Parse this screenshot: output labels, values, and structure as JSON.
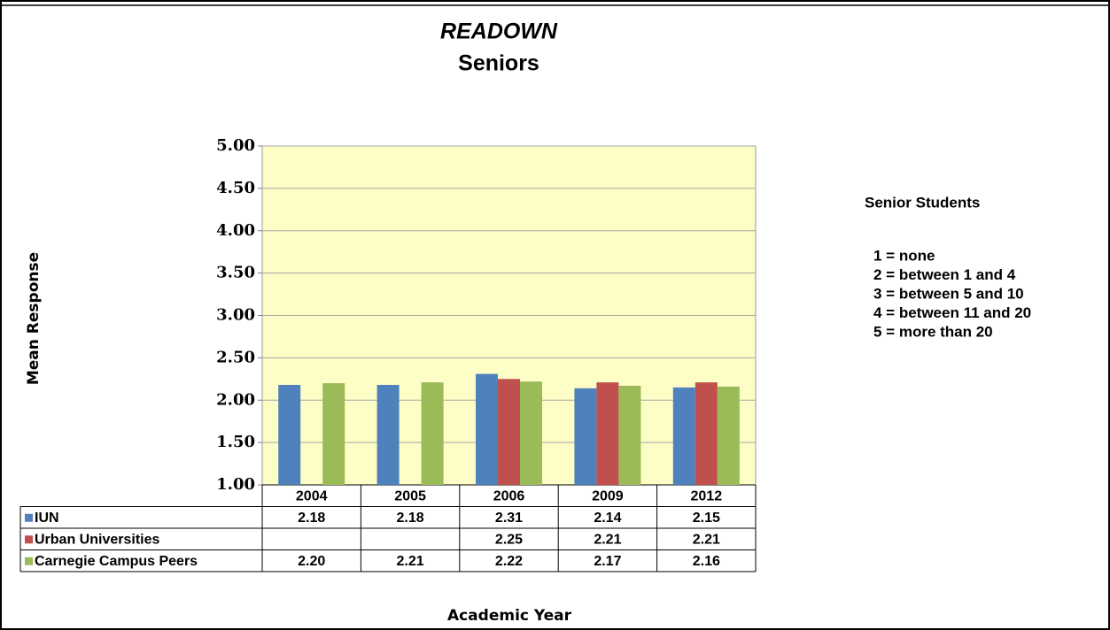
{
  "chart_data": {
    "type": "bar",
    "title": "READOWN",
    "subtitle": "Seniors",
    "y_label": "Mean Response",
    "x_label": "Academic Year",
    "categories": [
      "2004",
      "2005",
      "2006",
      "2009",
      "2012"
    ],
    "series": [
      {
        "name": "IUN",
        "color": "#4f81bd",
        "values": [
          2.18,
          2.18,
          2.31,
          2.14,
          2.15
        ],
        "value_labels": [
          "2.18",
          "2.18",
          "2.31",
          "2.14",
          "2.15"
        ]
      },
      {
        "name": "Urban Universities",
        "color": "#c0504d",
        "values": [
          null,
          null,
          2.25,
          2.21,
          2.21
        ],
        "value_labels": [
          null,
          null,
          "2.25",
          "2.21",
          "2.21"
        ]
      },
      {
        "name": "Carnegie Campus Peers",
        "color": "#9bbb59",
        "values": [
          2.2,
          2.21,
          2.22,
          2.17,
          2.16
        ],
        "value_labels": [
          "2.20",
          "2.21",
          "2.22",
          "2.17",
          "2.16"
        ]
      }
    ],
    "ylim": [
      1,
      5
    ],
    "yticks": [
      {
        "value": 1,
        "label": "1.00"
      },
      {
        "value": 1.5,
        "label": "1.50"
      },
      {
        "value": 2,
        "label": "2.00"
      },
      {
        "value": 2.5,
        "label": "2.50"
      },
      {
        "value": 3,
        "label": "3.00"
      },
      {
        "value": 3.5,
        "label": "3.50"
      },
      {
        "value": 4,
        "label": "4.00"
      },
      {
        "value": 4.5,
        "label": "4.50"
      },
      {
        "value": 5,
        "label": "5.00"
      }
    ],
    "grid": true,
    "plot_background": "#fdfdc6",
    "annotation": {
      "title": "Senior Students",
      "lines": [
        "1 = none",
        "2 = between 1 and 4",
        "3 = between 5 and 10",
        "4 = between 11 and 20",
        "5 = more than 20"
      ]
    }
  }
}
